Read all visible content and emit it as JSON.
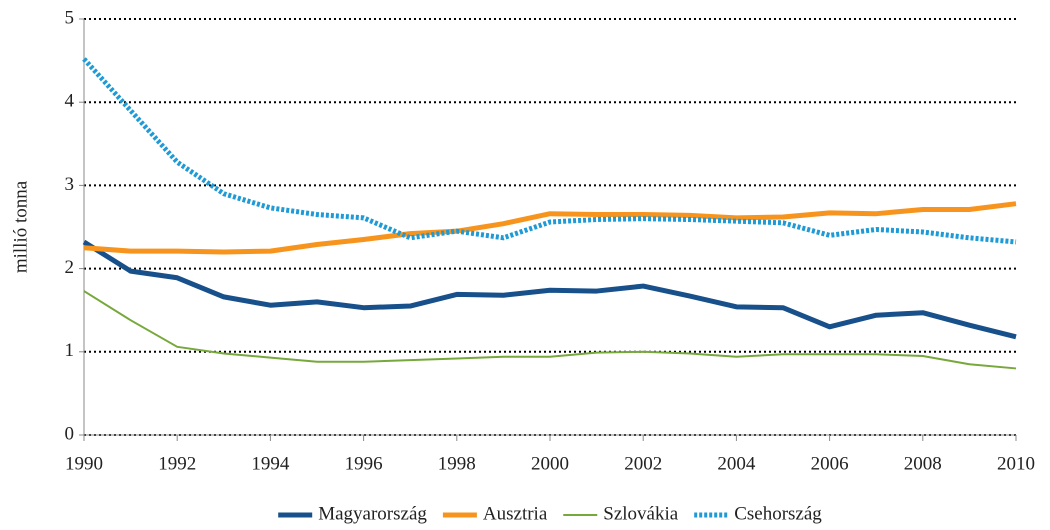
{
  "chart_data": {
    "type": "line",
    "y_label": "millió tonna",
    "x": [
      1990,
      1991,
      1992,
      1993,
      1994,
      1995,
      1996,
      1997,
      1998,
      1999,
      2000,
      2001,
      2002,
      2003,
      2004,
      2005,
      2006,
      2007,
      2008,
      2009,
      2010
    ],
    "xlim": [
      1990,
      2010
    ],
    "xticks": [
      1990,
      1992,
      1994,
      1996,
      1998,
      2000,
      2002,
      2004,
      2006,
      2008,
      2010
    ],
    "ylim": [
      0,
      5
    ],
    "yticks": [
      0,
      1,
      2,
      3,
      4,
      5
    ],
    "grid": true,
    "legend": "bottom",
    "series": [
      {
        "name": "Magyarország",
        "color": "#17508a",
        "line_width": 5,
        "style": "solid",
        "values": [
          2.32,
          1.97,
          1.89,
          1.66,
          1.56,
          1.6,
          1.53,
          1.55,
          1.69,
          1.68,
          1.74,
          1.73,
          1.79,
          1.67,
          1.54,
          1.53,
          1.3,
          1.44,
          1.47,
          1.32,
          1.18
        ]
      },
      {
        "name": "Ausztria",
        "color": "#f7941d",
        "line_width": 5,
        "style": "solid",
        "values": [
          2.25,
          2.21,
          2.21,
          2.2,
          2.21,
          2.29,
          2.35,
          2.42,
          2.45,
          2.54,
          2.66,
          2.65,
          2.65,
          2.64,
          2.61,
          2.62,
          2.67,
          2.66,
          2.71,
          2.71,
          2.78
        ]
      },
      {
        "name": "Szlovákia",
        "color": "#77a83b",
        "line_width": 2,
        "style": "solid",
        "values": [
          1.73,
          1.38,
          1.06,
          0.98,
          0.93,
          0.88,
          0.88,
          0.9,
          0.92,
          0.94,
          0.94,
          0.99,
          1.0,
          0.98,
          0.94,
          0.97,
          0.97,
          0.97,
          0.95,
          0.85,
          0.8
        ]
      },
      {
        "name": "Csehország",
        "color": "#1e9ad6",
        "line_width": 5,
        "style": "dotted",
        "values": [
          4.52,
          3.9,
          3.28,
          2.9,
          2.73,
          2.65,
          2.61,
          2.37,
          2.45,
          2.37,
          2.56,
          2.59,
          2.6,
          2.59,
          2.57,
          2.55,
          2.4,
          2.47,
          2.44,
          2.37,
          2.32
        ]
      }
    ]
  }
}
